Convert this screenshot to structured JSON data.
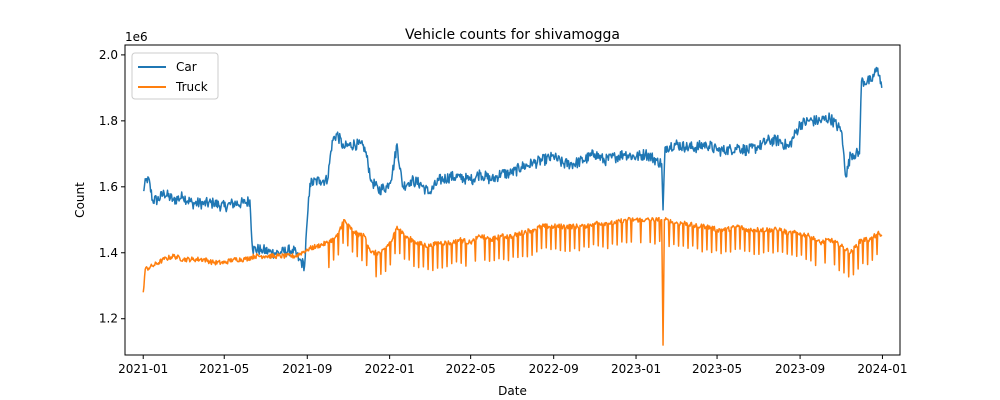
{
  "chart_data": {
    "type": "line",
    "title": "Vehicle counts for shivamogga",
    "xlabel": "Date",
    "ylabel": "Count",
    "y_offset_label": "1e6",
    "x_range": [
      "2020-12-05",
      "2024-01-27"
    ],
    "ylim": [
      1.09,
      2.03
    ],
    "x_ticks": [
      "2021-01",
      "2021-05",
      "2021-09",
      "2022-01",
      "2022-05",
      "2022-09",
      "2023-01",
      "2023-05",
      "2023-09",
      "2024-01"
    ],
    "y_ticks": [
      1.2,
      1.4,
      1.6,
      1.8,
      2.0
    ],
    "y_tick_labels": [
      "1.2",
      "1.4",
      "1.6",
      "1.8",
      "2.0"
    ],
    "grid": false,
    "legend": "upper-left",
    "series": [
      {
        "name": "Car",
        "color": "#1f77b4",
        "points": [
          [
            "2021-01-01",
            1.59
          ],
          [
            "2021-01-08",
            1.63
          ],
          [
            "2021-01-15",
            1.56
          ],
          [
            "2021-01-22",
            1.56
          ],
          [
            "2021-02-01",
            1.58
          ],
          [
            "2021-02-15",
            1.56
          ],
          [
            "2021-03-01",
            1.57
          ],
          [
            "2021-03-15",
            1.55
          ],
          [
            "2021-04-01",
            1.55
          ],
          [
            "2021-04-15",
            1.55
          ],
          [
            "2021-05-01",
            1.54
          ],
          [
            "2021-05-15",
            1.55
          ],
          [
            "2021-06-01",
            1.55
          ],
          [
            "2021-06-08",
            1.56
          ],
          [
            "2021-06-12",
            1.41
          ],
          [
            "2021-06-25",
            1.41
          ],
          [
            "2021-07-10",
            1.4
          ],
          [
            "2021-07-25",
            1.4
          ],
          [
            "2021-08-10",
            1.41
          ],
          [
            "2021-08-20",
            1.38
          ],
          [
            "2021-08-28",
            1.36
          ],
          [
            "2021-09-01",
            1.5
          ],
          [
            "2021-09-05",
            1.61
          ],
          [
            "2021-09-20",
            1.62
          ],
          [
            "2021-10-01",
            1.62
          ],
          [
            "2021-10-08",
            1.74
          ],
          [
            "2021-10-15",
            1.76
          ],
          [
            "2021-10-25",
            1.72
          ],
          [
            "2021-11-10",
            1.73
          ],
          [
            "2021-11-25",
            1.72
          ],
          [
            "2021-12-05",
            1.62
          ],
          [
            "2021-12-15",
            1.59
          ],
          [
            "2021-12-28",
            1.6
          ],
          [
            "2022-01-05",
            1.64
          ],
          [
            "2022-01-12",
            1.73
          ],
          [
            "2022-01-20",
            1.6
          ],
          [
            "2022-02-01",
            1.62
          ],
          [
            "2022-02-15",
            1.61
          ],
          [
            "2022-03-01",
            1.58
          ],
          [
            "2022-03-15",
            1.62
          ],
          [
            "2022-04-01",
            1.63
          ],
          [
            "2022-04-15",
            1.63
          ],
          [
            "2022-05-01",
            1.62
          ],
          [
            "2022-05-15",
            1.64
          ],
          [
            "2022-06-01",
            1.62
          ],
          [
            "2022-06-15",
            1.64
          ],
          [
            "2022-07-01",
            1.64
          ],
          [
            "2022-07-15",
            1.66
          ],
          [
            "2022-08-01",
            1.67
          ],
          [
            "2022-08-15",
            1.68
          ],
          [
            "2022-09-01",
            1.69
          ],
          [
            "2022-09-15",
            1.67
          ],
          [
            "2022-10-01",
            1.67
          ],
          [
            "2022-10-15",
            1.68
          ],
          [
            "2022-11-01",
            1.7
          ],
          [
            "2022-11-15",
            1.68
          ],
          [
            "2022-12-01",
            1.69
          ],
          [
            "2022-12-15",
            1.7
          ],
          [
            "2023-01-01",
            1.69
          ],
          [
            "2023-01-15",
            1.7
          ],
          [
            "2023-02-01",
            1.68
          ],
          [
            "2023-02-08",
            1.67
          ],
          [
            "2023-02-10",
            1.53
          ],
          [
            "2023-02-13",
            1.72
          ],
          [
            "2023-03-01",
            1.73
          ],
          [
            "2023-03-15",
            1.72
          ],
          [
            "2023-04-01",
            1.72
          ],
          [
            "2023-04-15",
            1.73
          ],
          [
            "2023-05-01",
            1.71
          ],
          [
            "2023-05-15",
            1.71
          ],
          [
            "2023-06-01",
            1.72
          ],
          [
            "2023-06-15",
            1.71
          ],
          [
            "2023-07-01",
            1.72
          ],
          [
            "2023-07-15",
            1.74
          ],
          [
            "2023-08-01",
            1.74
          ],
          [
            "2023-08-15",
            1.72
          ],
          [
            "2023-09-01",
            1.79
          ],
          [
            "2023-09-15",
            1.8
          ],
          [
            "2023-10-01",
            1.8
          ],
          [
            "2023-10-15",
            1.81
          ],
          [
            "2023-11-01",
            1.77
          ],
          [
            "2023-11-08",
            1.63
          ],
          [
            "2023-11-15",
            1.7
          ],
          [
            "2023-11-28",
            1.7
          ],
          [
            "2023-12-01",
            1.92
          ],
          [
            "2023-12-15",
            1.92
          ],
          [
            "2023-12-25",
            1.96
          ],
          [
            "2023-12-31",
            1.9
          ]
        ]
      },
      {
        "name": "Truck",
        "color": "#ff7f0e",
        "points": [
          [
            "2021-01-01",
            1.28
          ],
          [
            "2021-01-04",
            1.35
          ],
          [
            "2021-01-15",
            1.36
          ],
          [
            "2021-02-01",
            1.38
          ],
          [
            "2021-02-15",
            1.39
          ],
          [
            "2021-03-01",
            1.38
          ],
          [
            "2021-03-15",
            1.38
          ],
          [
            "2021-04-01",
            1.38
          ],
          [
            "2021-04-15",
            1.37
          ],
          [
            "2021-05-01",
            1.37
          ],
          [
            "2021-05-15",
            1.38
          ],
          [
            "2021-06-01",
            1.38
          ],
          [
            "2021-06-15",
            1.39
          ],
          [
            "2021-07-01",
            1.39
          ],
          [
            "2021-07-15",
            1.39
          ],
          [
            "2021-08-01",
            1.39
          ],
          [
            "2021-08-15",
            1.39
          ],
          [
            "2021-09-01",
            1.41
          ],
          [
            "2021-09-15",
            1.42
          ],
          [
            "2021-10-01",
            1.43
          ],
          [
            "2021-10-15",
            1.45
          ],
          [
            "2021-10-25",
            1.5
          ],
          [
            "2021-11-10",
            1.46
          ],
          [
            "2021-11-25",
            1.45
          ],
          [
            "2021-12-05",
            1.4
          ],
          [
            "2021-12-20",
            1.4
          ],
          [
            "2022-01-05",
            1.44
          ],
          [
            "2022-01-12",
            1.48
          ],
          [
            "2022-01-25",
            1.45
          ],
          [
            "2022-02-10",
            1.43
          ],
          [
            "2022-03-01",
            1.42
          ],
          [
            "2022-03-15",
            1.43
          ],
          [
            "2022-04-01",
            1.43
          ],
          [
            "2022-04-15",
            1.44
          ],
          [
            "2022-05-01",
            1.43
          ],
          [
            "2022-05-15",
            1.45
          ],
          [
            "2022-06-01",
            1.44
          ],
          [
            "2022-06-15",
            1.45
          ],
          [
            "2022-07-01",
            1.45
          ],
          [
            "2022-07-15",
            1.46
          ],
          [
            "2022-08-01",
            1.47
          ],
          [
            "2022-08-15",
            1.48
          ],
          [
            "2022-09-01",
            1.48
          ],
          [
            "2022-09-15",
            1.48
          ],
          [
            "2022-10-01",
            1.48
          ],
          [
            "2022-10-15",
            1.48
          ],
          [
            "2022-11-01",
            1.49
          ],
          [
            "2022-11-15",
            1.49
          ],
          [
            "2022-12-01",
            1.49
          ],
          [
            "2022-12-15",
            1.5
          ],
          [
            "2023-01-01",
            1.5
          ],
          [
            "2023-01-15",
            1.5
          ],
          [
            "2023-02-01",
            1.5
          ],
          [
            "2023-02-08",
            1.5
          ],
          [
            "2023-02-10",
            1.12
          ],
          [
            "2023-02-12",
            1.5
          ],
          [
            "2023-03-01",
            1.49
          ],
          [
            "2023-03-15",
            1.49
          ],
          [
            "2023-04-01",
            1.48
          ],
          [
            "2023-04-15",
            1.48
          ],
          [
            "2023-05-01",
            1.47
          ],
          [
            "2023-05-15",
            1.47
          ],
          [
            "2023-06-01",
            1.48
          ],
          [
            "2023-06-15",
            1.47
          ],
          [
            "2023-07-01",
            1.47
          ],
          [
            "2023-07-15",
            1.47
          ],
          [
            "2023-08-01",
            1.47
          ],
          [
            "2023-08-15",
            1.46
          ],
          [
            "2023-09-01",
            1.46
          ],
          [
            "2023-09-15",
            1.45
          ],
          [
            "2023-10-01",
            1.43
          ],
          [
            "2023-10-15",
            1.44
          ],
          [
            "2023-11-01",
            1.42
          ],
          [
            "2023-11-15",
            1.4
          ],
          [
            "2023-12-01",
            1.44
          ],
          [
            "2023-12-15",
            1.44
          ],
          [
            "2023-12-25",
            1.46
          ],
          [
            "2023-12-31",
            1.45
          ]
        ]
      }
    ]
  }
}
